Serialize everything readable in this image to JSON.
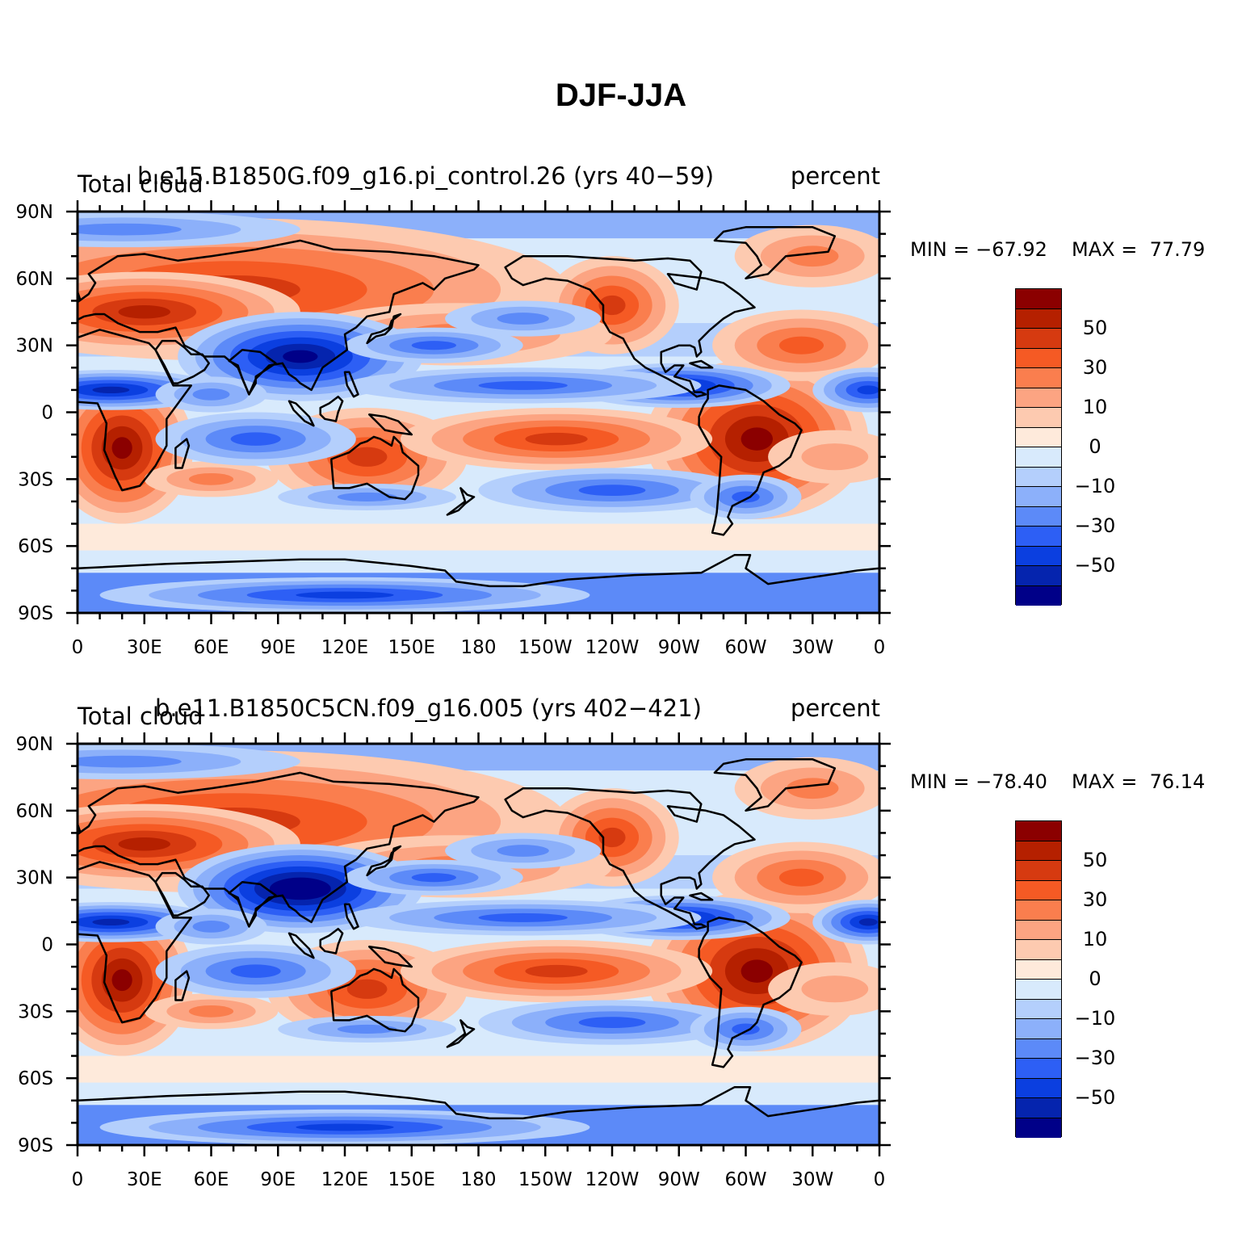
{
  "title": "DJF-JJA",
  "x_ticks": [
    "0",
    "30E",
    "60E",
    "90E",
    "120E",
    "150E",
    "180",
    "150W",
    "120W",
    "90W",
    "60W",
    "30W",
    "0"
  ],
  "y_ticks": [
    "90N",
    "60N",
    "30N",
    "0",
    "30S",
    "60S",
    "90S"
  ],
  "colorbar": {
    "colors": [
      "#8b0000",
      "#b52000",
      "#d63a10",
      "#f55a24",
      "#fa7e4e",
      "#fca482",
      "#fdcab0",
      "#feeadb",
      "#d8eafc",
      "#b4cffc",
      "#8cb0fa",
      "#5c8af8",
      "#2d5ff5",
      "#0b3fe0",
      "#0524ae",
      "#000088"
    ],
    "labels": [
      "50",
      "30",
      "10",
      "0",
      "−10",
      "−30",
      "−50"
    ]
  },
  "panels": [
    {
      "variable": "Total cloud",
      "case": "b.e15.B1850G.f09_g16.pi_control.26 (yrs 40−59)",
      "units": "percent",
      "min_label": "MIN = −67.92",
      "max_label": "MAX =  77.79"
    },
    {
      "variable": "Total cloud",
      "case": "b.e11.B1850C5CN.f09_g16.005 (yrs 402−421)",
      "units": "percent",
      "min_label": "MIN = −78.40",
      "max_label": "MAX =  76.14"
    }
  ]
}
